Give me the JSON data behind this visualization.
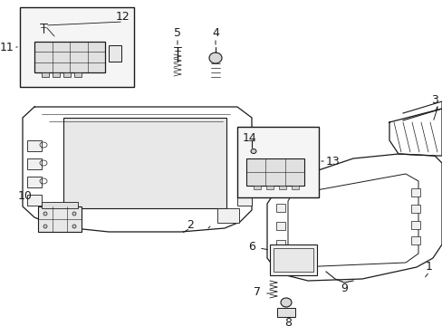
{
  "bg": "#ffffff",
  "lc": "#1a1a1a",
  "fw": 4.89,
  "fh": 3.6,
  "dpi": 100,
  "fs": 9,
  "fs_small": 7.5
}
